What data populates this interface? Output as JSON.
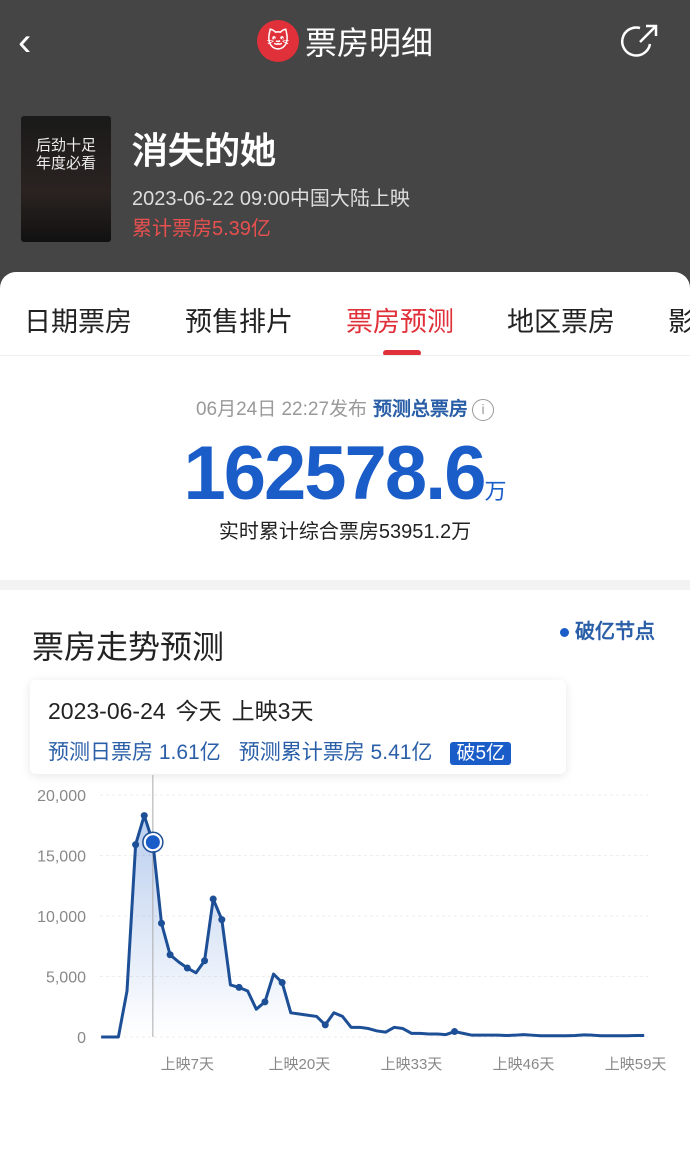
{
  "header": {
    "title": "票房明细",
    "back_icon": "chevron-left-icon",
    "share_icon": "share-icon",
    "logo": "maoyan-cat-logo"
  },
  "movie": {
    "title": "消失的她",
    "release": "2023-06-22 09:00中国大陆上映",
    "box_office": "累计票房5.39亿",
    "poster_text": "后劲十足 年度必看"
  },
  "tabs": [
    {
      "label": "日期票房"
    },
    {
      "label": "预售排片"
    },
    {
      "label": "票房预测",
      "active": true
    },
    {
      "label": "地区票房"
    },
    {
      "label": "影"
    }
  ],
  "prediction": {
    "published": "06月24日 22:27发布",
    "label": "预测总票房",
    "value": "162578.6",
    "unit": "万",
    "realtime": "实时累计综合票房53951.2万"
  },
  "trend": {
    "title": "票房走势预测",
    "legend": "破亿节点",
    "tooltip": {
      "date": "2023-06-24",
      "today": "今天",
      "day": "上映3天",
      "daily": "预测日票房 1.61亿",
      "total": "预测累计票房 5.41亿",
      "badge": "破5亿"
    }
  },
  "colors": {
    "accent": "#e0303a",
    "blue": "#1a5cc8",
    "header_bg": "#454545"
  },
  "chart_data": {
    "type": "area",
    "xlabel": "",
    "ylabel": "",
    "x_unit": "上映N天",
    "ylim": [
      0,
      20000
    ],
    "yticks": [
      "0",
      "5,000",
      "10,000",
      "15,000",
      "20,000"
    ],
    "xticks": [
      {
        "day": 7,
        "label": "上映7天"
      },
      {
        "day": 20,
        "label": "上映20天"
      },
      {
        "day": 33,
        "label": "上映33天"
      },
      {
        "day": 46,
        "label": "上映46天"
      },
      {
        "day": 59,
        "label": "上映59天"
      }
    ],
    "highlight_day": 3,
    "grid": true,
    "days": [
      -3,
      -2,
      -1,
      0,
      1,
      2,
      3,
      4,
      5,
      6,
      7,
      8,
      9,
      10,
      11,
      12,
      13,
      14,
      15,
      16,
      17,
      18,
      19,
      20,
      21,
      22,
      23,
      24,
      25,
      26,
      27,
      28,
      29,
      30,
      31,
      32,
      33,
      34,
      35,
      36,
      37,
      38,
      39,
      40,
      41,
      42,
      43,
      44,
      45,
      46,
      47,
      48,
      49,
      50,
      51,
      52,
      53,
      54,
      55,
      56,
      57,
      58,
      59,
      60
    ],
    "values": [
      0,
      0,
      0,
      3800,
      15900,
      18300,
      16100,
      9400,
      6800,
      6200,
      5700,
      5300,
      6300,
      11400,
      9700,
      4300,
      4100,
      3800,
      2300,
      2900,
      5200,
      4500,
      2000,
      1900,
      1800,
      1700,
      1000,
      2000,
      1700,
      800,
      800,
      700,
      500,
      400,
      800,
      700,
      300,
      300,
      250,
      250,
      200,
      450,
      300,
      150,
      150,
      150,
      150,
      120,
      150,
      200,
      150,
      100,
      100,
      100,
      100,
      120,
      180,
      150,
      100,
      100,
      100,
      100,
      120,
      120
    ],
    "marked_days": [
      1,
      2,
      4,
      5,
      7,
      9,
      10,
      11,
      13,
      16,
      18,
      23,
      38
    ]
  }
}
